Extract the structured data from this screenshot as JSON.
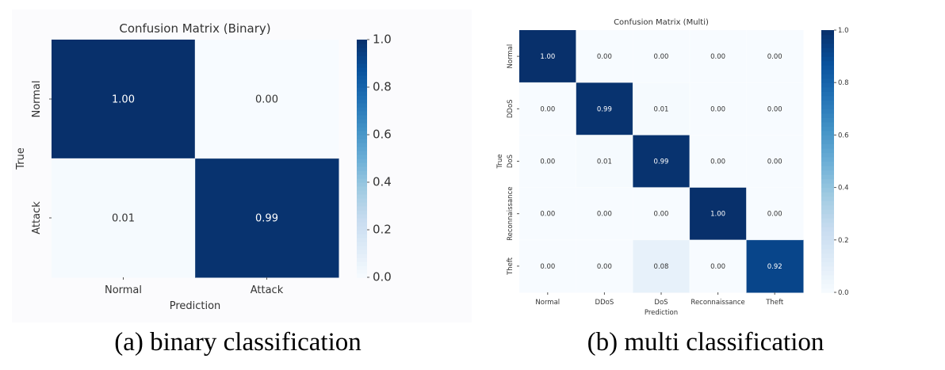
{
  "colormap": "Blues",
  "colormap_stops": [
    "#f7fbff",
    "#deebf7",
    "#c6dbef",
    "#9ecae1",
    "#6baed6",
    "#4292c6",
    "#2171b5",
    "#08519c",
    "#08306b"
  ],
  "chart_data": [
    {
      "type": "heatmap",
      "title": "Confusion Matrix (Binary)",
      "xlabel": "Prediction",
      "ylabel": "True",
      "x_categories": [
        "Normal",
        "Attack"
      ],
      "y_categories": [
        "Normal",
        "Attack"
      ],
      "values": [
        [
          1.0,
          0.0
        ],
        [
          0.01,
          0.99
        ]
      ],
      "colorbar": {
        "range": [
          0.0,
          1.0
        ],
        "ticks": [
          "0.0",
          "0.2",
          "0.4",
          "0.6",
          "0.8",
          "1.0"
        ]
      },
      "caption": "(a) binary classification"
    },
    {
      "type": "heatmap",
      "title": "Confusion Matrix (Multi)",
      "xlabel": "Prediction",
      "ylabel": "True",
      "x_categories": [
        "Normal",
        "DDoS",
        "DoS",
        "Reconnaissance",
        "Theft"
      ],
      "y_categories": [
        "Normal",
        "DDoS",
        "DoS",
        "Reconnaissance",
        "Theft"
      ],
      "values": [
        [
          1.0,
          0.0,
          0.0,
          0.0,
          0.0
        ],
        [
          0.0,
          0.99,
          0.01,
          0.0,
          0.0
        ],
        [
          0.0,
          0.01,
          0.99,
          0.0,
          0.0
        ],
        [
          0.0,
          0.0,
          0.0,
          1.0,
          0.0
        ],
        [
          0.0,
          0.0,
          0.08,
          0.0,
          0.92
        ]
      ],
      "colorbar": {
        "range": [
          0.0,
          1.0
        ],
        "ticks": [
          "0.0",
          "0.2",
          "0.4",
          "0.6",
          "0.8",
          "1.0"
        ]
      },
      "caption": "(b) multi classification"
    }
  ]
}
